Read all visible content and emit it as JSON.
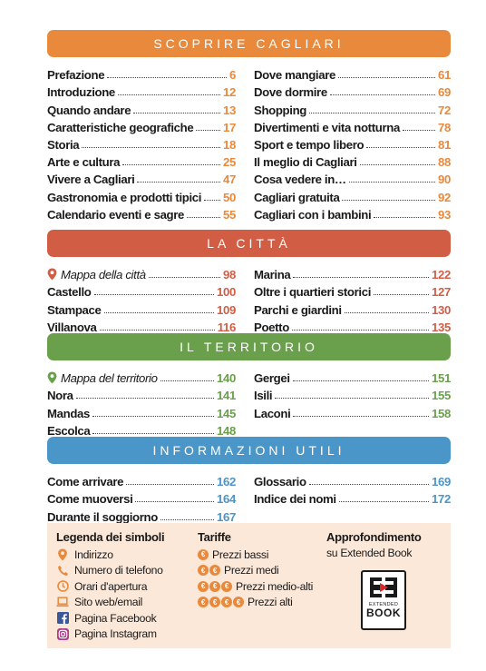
{
  "colors": {
    "orange": "#e8893b",
    "red": "#d25d45",
    "green": "#6aa04b",
    "blue": "#4a96c8",
    "legend_bg": "#fbe8d9"
  },
  "sections": [
    {
      "title": "SCOPRIRE CAGLIARI",
      "left": [
        {
          "label": "Prefazione",
          "page": "6"
        },
        {
          "label": "Introduzione",
          "page": "12"
        },
        {
          "label": "Quando andare",
          "page": "13"
        },
        {
          "label": "Caratteristiche geografiche",
          "page": "17"
        },
        {
          "label": "Storia",
          "page": "18"
        },
        {
          "label": "Arte e cultura",
          "page": "25"
        },
        {
          "label": "Vivere a Cagliari",
          "page": "47"
        },
        {
          "label": "Gastronomia e prodotti tipici",
          "page": "50"
        },
        {
          "label": "Calendario eventi e sagre",
          "page": "55"
        }
      ],
      "right": [
        {
          "label": "Dove mangiare",
          "page": "61"
        },
        {
          "label": "Dove dormire",
          "page": "69"
        },
        {
          "label": "Shopping",
          "page": "72"
        },
        {
          "label": "Divertimenti e vita notturna",
          "page": "78"
        },
        {
          "label": "Sport e tempo libero",
          "page": "81"
        },
        {
          "label": "Il meglio di Cagliari",
          "page": "88"
        },
        {
          "label": "Cosa vedere in…",
          "page": "90"
        },
        {
          "label": "Cagliari gratuita",
          "page": "92"
        },
        {
          "label": "Cagliari con i bambini",
          "page": "93"
        }
      ]
    },
    {
      "title": "LA CITTÀ",
      "left": [
        {
          "label": "Mappa della città",
          "page": "98",
          "map": true
        },
        {
          "label": "Castello",
          "page": "100"
        },
        {
          "label": "Stampace",
          "page": "109"
        },
        {
          "label": "Villanova",
          "page": "116"
        }
      ],
      "right": [
        {
          "label": "Marina",
          "page": "122"
        },
        {
          "label": "Oltre i quartieri storici",
          "page": "127"
        },
        {
          "label": "Parchi e giardini",
          "page": "130"
        },
        {
          "label": "Poetto",
          "page": "135"
        }
      ]
    },
    {
      "title": "IL TERRITORIO",
      "left": [
        {
          "label": "Mappa del territorio",
          "page": "140",
          "map": true
        },
        {
          "label": "Nora",
          "page": "141"
        },
        {
          "label": "Mandas",
          "page": "145"
        },
        {
          "label": "Escolca",
          "page": "148"
        }
      ],
      "right": [
        {
          "label": "Gergei",
          "page": "151"
        },
        {
          "label": "Isili",
          "page": "155"
        },
        {
          "label": "Laconi",
          "page": "158"
        }
      ]
    },
    {
      "title": "INFORMAZIONI UTILI",
      "left": [
        {
          "label": "Come arrivare",
          "page": "162"
        },
        {
          "label": "Come muoversi",
          "page": "164"
        },
        {
          "label": "Durante il soggiorno",
          "page": "167"
        }
      ],
      "right": [
        {
          "label": "Glossario",
          "page": "169"
        },
        {
          "label": "Indice dei nomi",
          "page": "172"
        }
      ]
    }
  ],
  "legend": {
    "symbols_title": "Legenda dei simboli",
    "symbols": [
      {
        "icon": "map-pin-icon",
        "label": "Indirizzo"
      },
      {
        "icon": "phone-icon",
        "label": "Numero di telefono"
      },
      {
        "icon": "clock-icon",
        "label": "Orari d'apertura"
      },
      {
        "icon": "laptop-icon",
        "label": "Sito web/email"
      },
      {
        "icon": "facebook-icon",
        "label": "Pagina Facebook"
      },
      {
        "icon": "instagram-icon",
        "label": "Pagina Instagram"
      }
    ],
    "tariffe_title": "Tariffe",
    "tariffe": [
      {
        "coins": 1,
        "label": "Prezzi bassi"
      },
      {
        "coins": 2,
        "label": "Prezzi medi"
      },
      {
        "coins": 3,
        "label": "Prezzi medio-alti"
      },
      {
        "coins": 4,
        "label": "Prezzi alti"
      }
    ],
    "coin_symbol": "€",
    "approfondimento_title": "Approfondimento",
    "approfondimento_sub": "su Extended Book",
    "book_logo_small": "EXTENDED",
    "book_logo_big": "BOOK"
  }
}
